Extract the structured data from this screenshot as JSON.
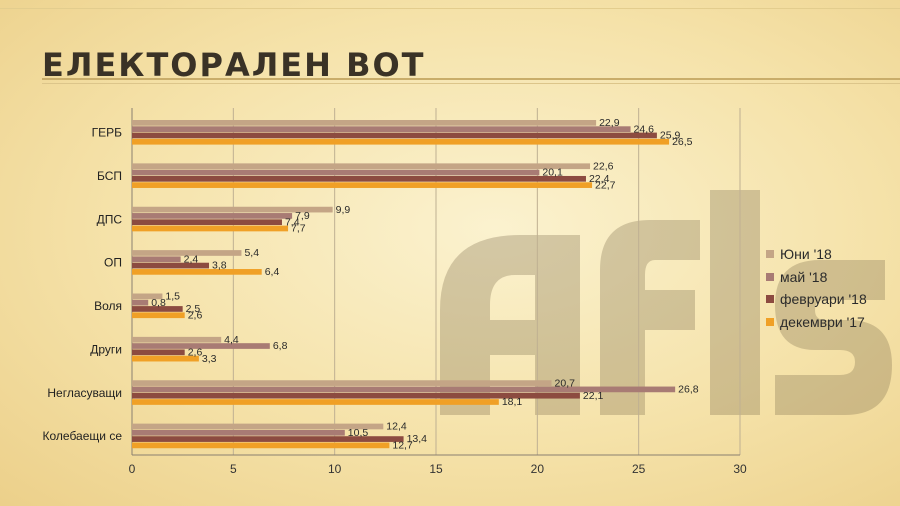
{
  "page": {
    "title": "ЕЛЕКТОРАЛЕН ВОТ"
  },
  "watermark": {
    "icon": "afis-logo-watermark"
  },
  "chart_data": {
    "type": "bar",
    "orientation": "horizontal",
    "categories": [
      "ГЕРБ",
      "БСП",
      "ДПС",
      "ОП",
      "Воля",
      "Други",
      "Негласуващи",
      "Колебаещи се"
    ],
    "series": [
      {
        "name": "Юни '18",
        "color": "#c4a586",
        "values": [
          22.9,
          22.6,
          9.9,
          5.4,
          1.5,
          4.4,
          20.7,
          12.4
        ],
        "labels": [
          "22,9",
          "22,6",
          "9,9",
          "5,4",
          "1,5",
          "4,4",
          "20,7",
          "12,4"
        ]
      },
      {
        "name": "май '18",
        "color": "#a87b74",
        "values": [
          24.6,
          20.1,
          7.9,
          2.4,
          0.8,
          6.8,
          26.8,
          10.5
        ],
        "labels": [
          "24,6",
          "20,1",
          "7,9",
          "2,4",
          "0,8",
          "6,8",
          "26,8",
          "10,5"
        ]
      },
      {
        "name": "февруари '18",
        "color": "#8c4b40",
        "values": [
          25.9,
          22.4,
          7.4,
          3.8,
          2.5,
          2.6,
          22.1,
          13.4
        ],
        "labels": [
          "25,9",
          "22,4",
          "7,4",
          "3,8",
          "2,5",
          "2,6",
          "22,1",
          "13,4"
        ]
      },
      {
        "name": "декември '17",
        "color": "#f0a026",
        "values": [
          26.5,
          22.7,
          7.7,
          6.4,
          2.6,
          3.3,
          18.1,
          12.7
        ],
        "labels": [
          "26,5",
          "22,7",
          "7,7",
          "6,4",
          "2,6",
          "3,3",
          "18,1",
          "12,7"
        ]
      }
    ],
    "xlim": [
      0,
      30
    ],
    "xticks": [
      0,
      5,
      10,
      15,
      20,
      25,
      30
    ],
    "grid": true,
    "legend_position": "right"
  }
}
